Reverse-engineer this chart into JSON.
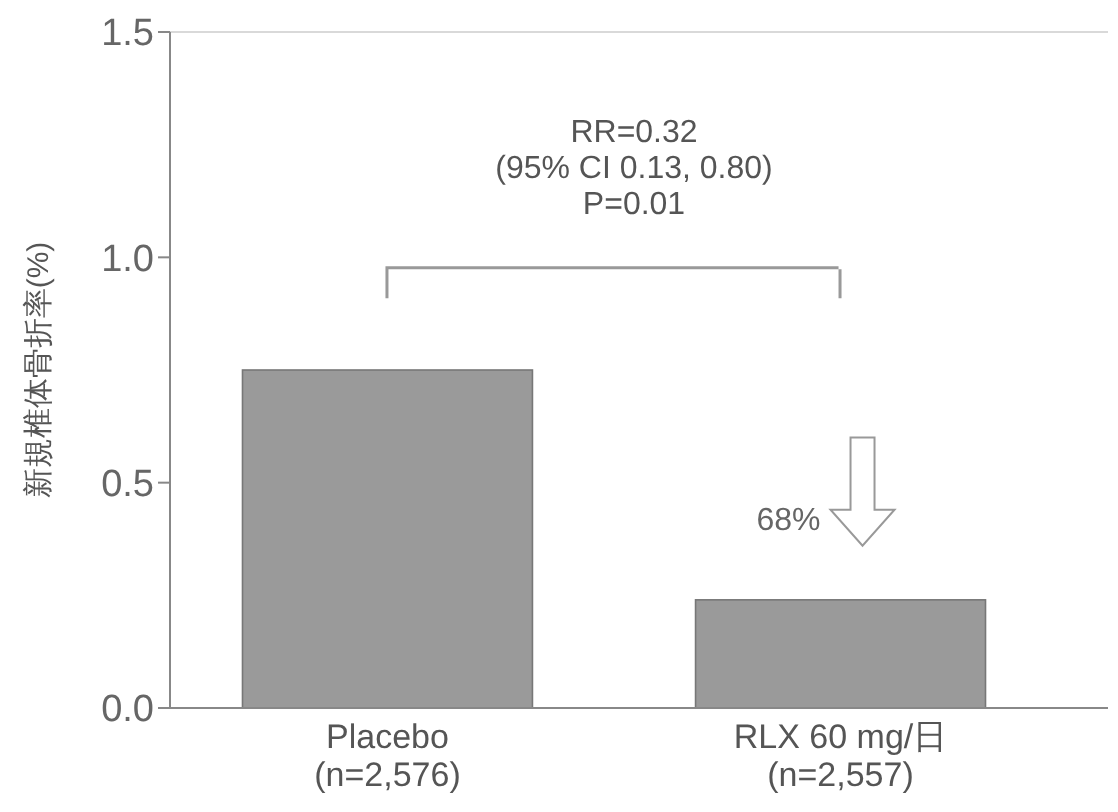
{
  "chart_data": {
    "type": "bar",
    "ylabel": "新規椎体骨折率(%)",
    "categories": [
      "Placebo\n(n=2,576)",
      "RLX 60 mg/日\n(n=2,557)"
    ],
    "values": [
      0.75,
      0.24
    ],
    "color": "#9a9a9a",
    "ylim": [
      0,
      1.5
    ],
    "yticks": [
      {
        "value": 0,
        "label": "0.0"
      },
      {
        "value": 0.5,
        "label": "0.5"
      },
      {
        "value": 1,
        "label": "1.0"
      },
      {
        "value": 1.5,
        "label": "1.5"
      }
    ],
    "annotations": [
      "RR=0.32\n(95% CI 0.13, 0.80)\nP=0.01",
      "68%"
    ],
    "grid": false
  }
}
